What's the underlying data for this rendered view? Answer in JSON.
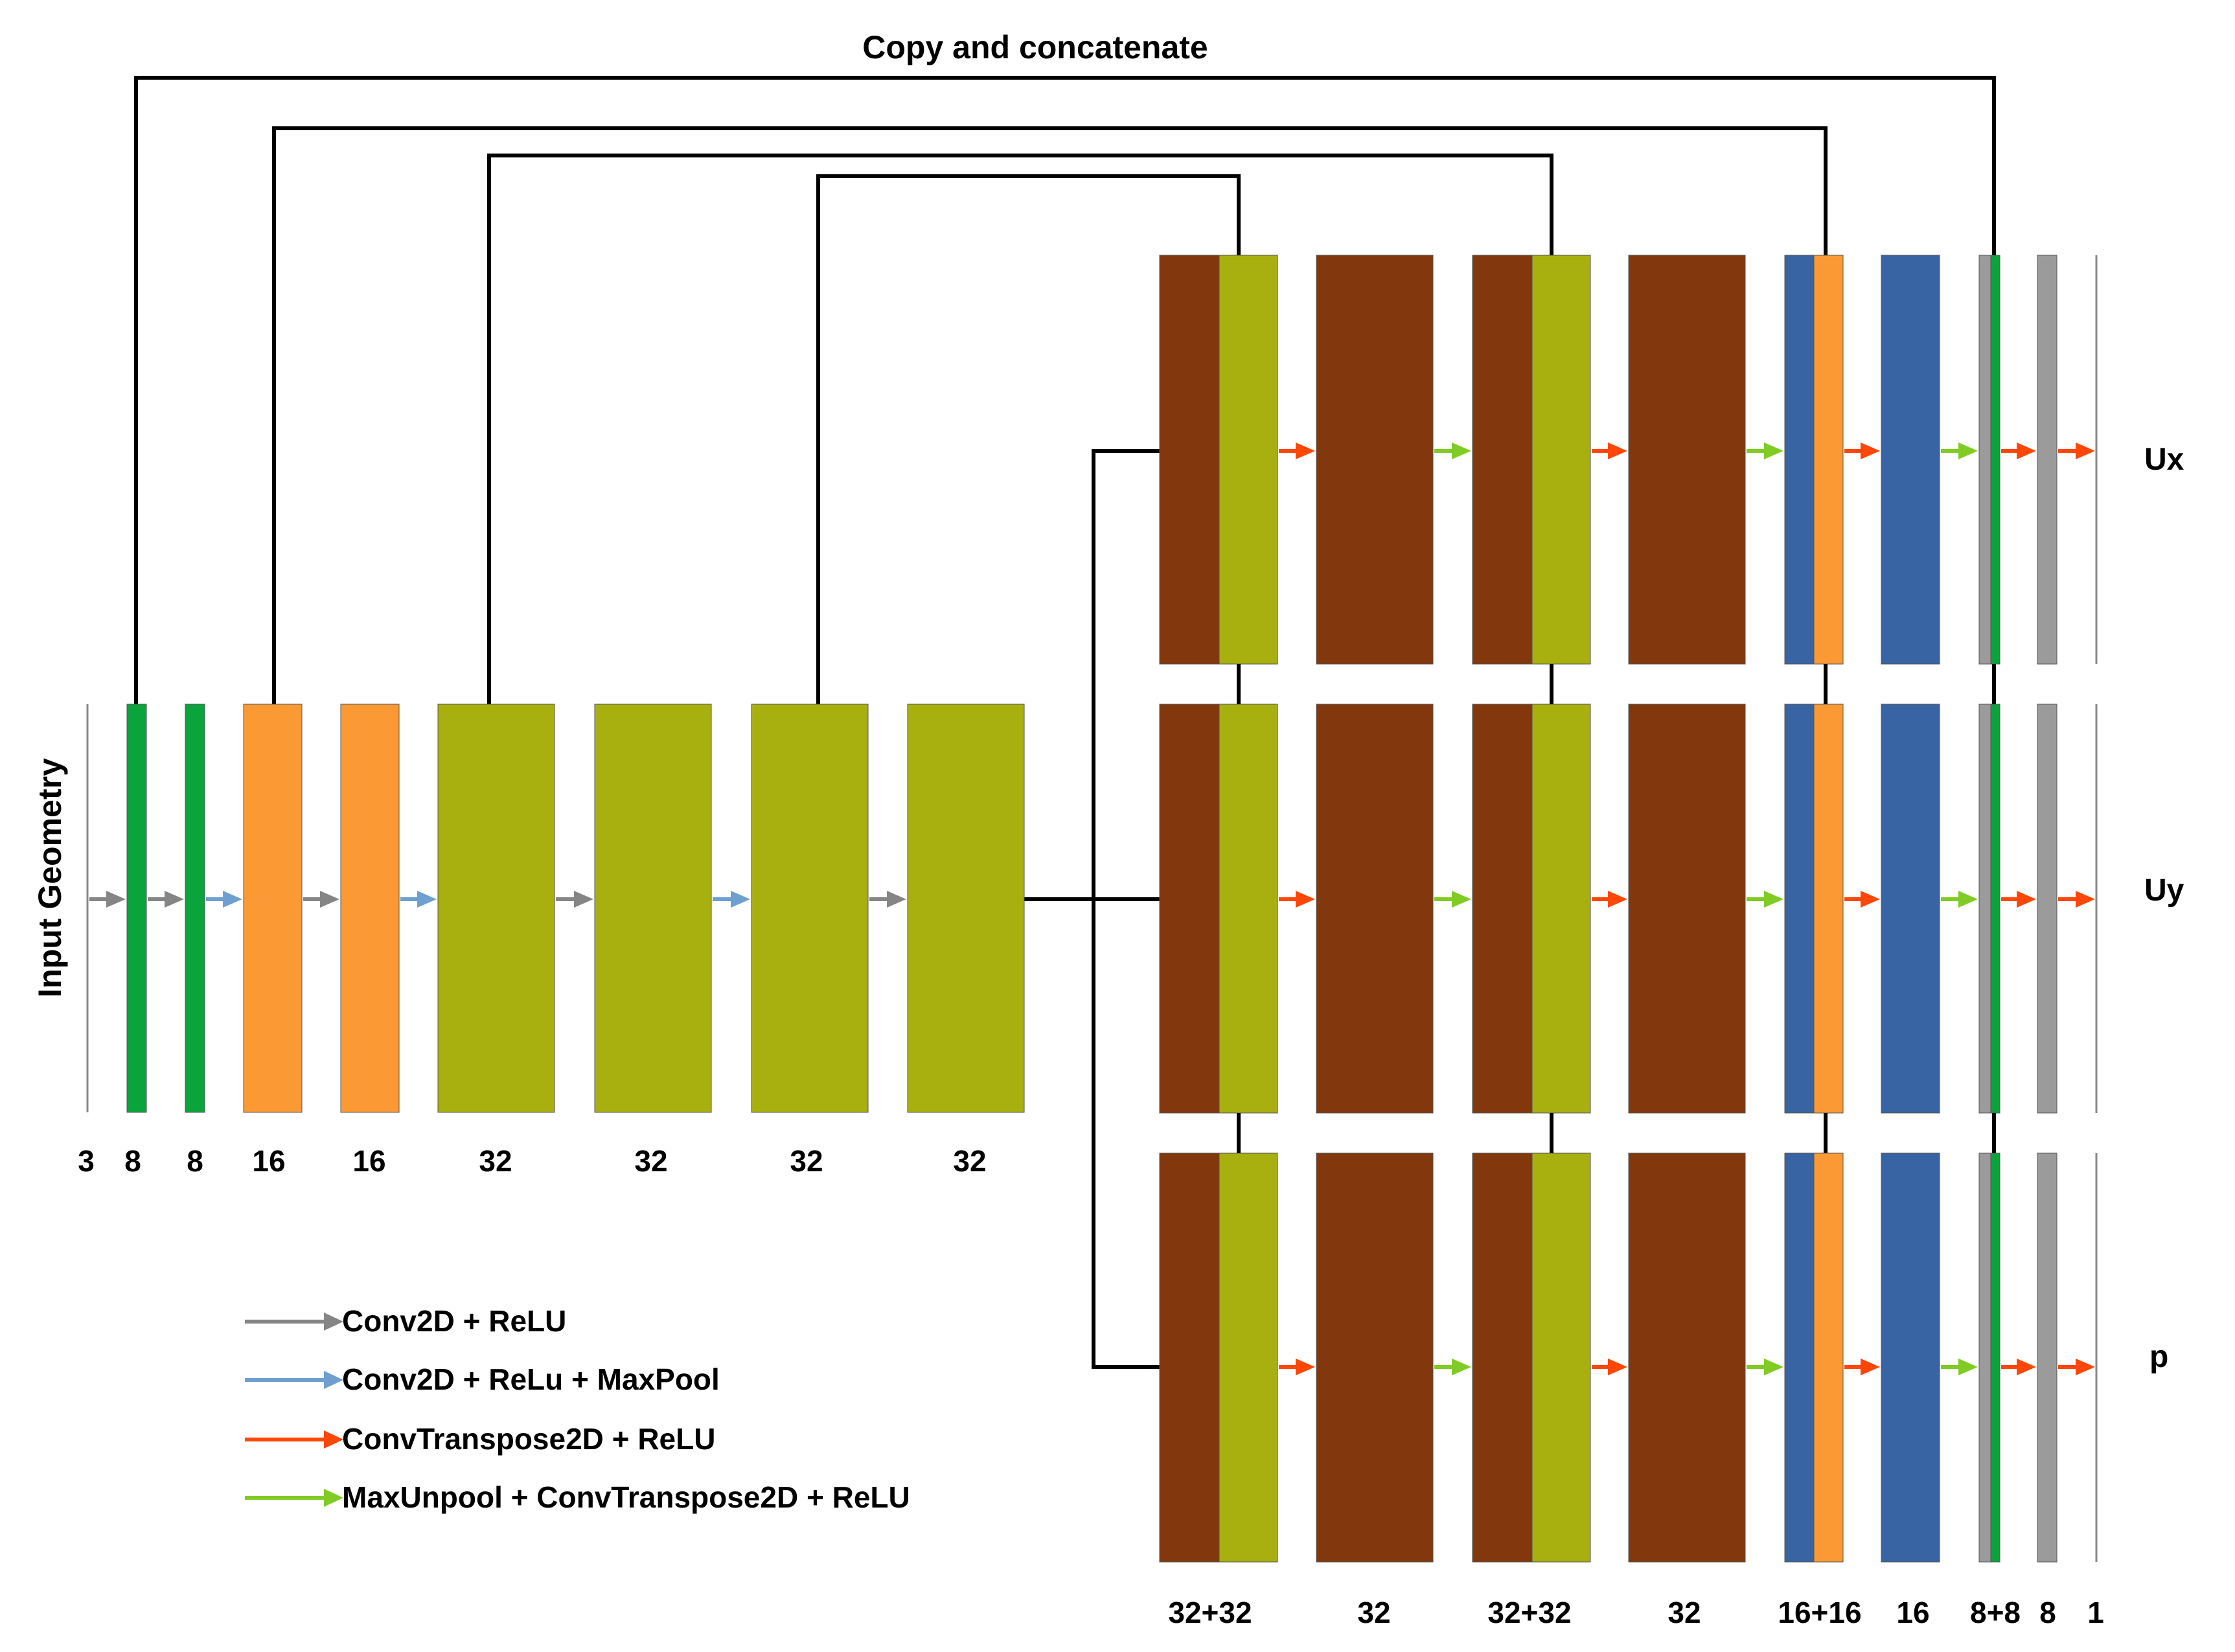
{
  "title": "Copy and concatenate",
  "input_label": "Input Geometry",
  "colors": {
    "green": "#0aa43c",
    "orange": "#fb9a35",
    "olive": "#a8b010",
    "brown": "#82380c",
    "blue": "#3864a4",
    "gray": "#9b9b9b",
    "arrow_conv": "#858585",
    "arrow_conv_pool": "#6f9fd1",
    "arrow_convT": "#fe4707",
    "arrow_unpool": "#80cc24",
    "line": "#000000"
  },
  "encoder": {
    "channels": [
      "3",
      "8",
      "8",
      "16",
      "16",
      "32",
      "32",
      "32",
      "32"
    ]
  },
  "decoder": {
    "channels": [
      "32+32",
      "32",
      "32+32",
      "32",
      "16+16",
      "16",
      "8+8",
      "8",
      "1"
    ],
    "outputs": [
      "Ux",
      "Uy",
      "p"
    ]
  },
  "legend": [
    {
      "label": "Conv2D + ReLU",
      "color_key": "arrow_conv"
    },
    {
      "label": "Conv2D + ReLu + MaxPool",
      "color_key": "arrow_conv_pool"
    },
    {
      "label": "ConvTranspose2D + ReLU",
      "color_key": "arrow_convT"
    },
    {
      "label": "MaxUnpool + ConvTranspose2D + ReLU",
      "color_key": "arrow_unpool"
    }
  ]
}
